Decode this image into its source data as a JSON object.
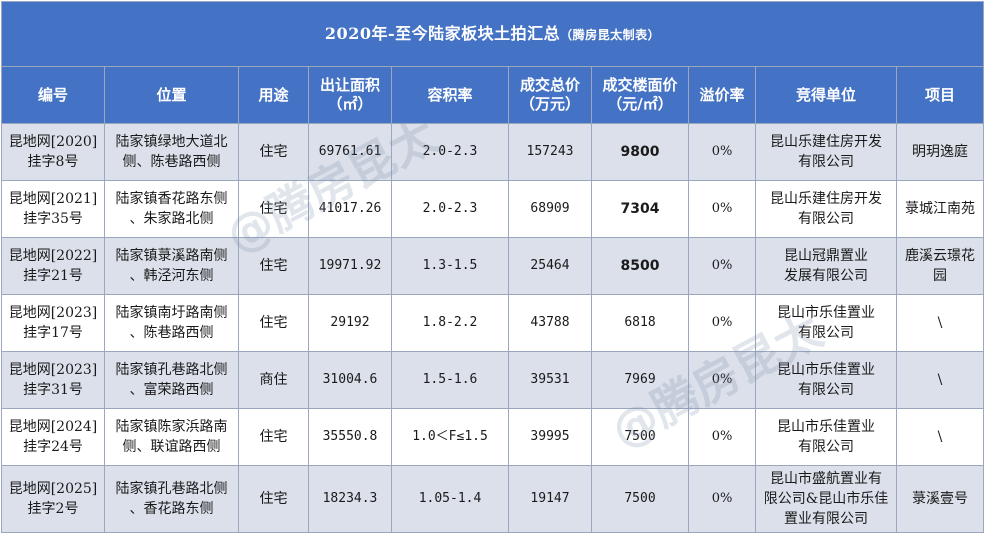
{
  "title": "2020年-至今陆家板块土拍汇总",
  "title_note": "（腾房昆太制表）",
  "headers": [
    "编号",
    "位置",
    "用途",
    "出让面积\n（㎡）",
    "容积率",
    "成交总价\n（万元）",
    "成交楼面价\n（元/㎡）",
    "溢价率",
    "竞得单位",
    "项目"
  ],
  "rows": [
    {
      "id": "昆地网[2020]\n挂字8号",
      "location": "陆家镇绿地大道北\n侧、陈巷路西侧",
      "use": "住宅",
      "area": "69761.61",
      "far": "2.0-2.3",
      "total_price": "157243",
      "floor_price": "9800",
      "premium": "0%",
      "winner": "昆山乐建住房开发\n有限公司",
      "project": "明玥逸庭",
      "highlight": true
    },
    {
      "id": "昆地网[2021]\n挂字35号",
      "location": "陆家镇香花路东侧\n、朱家路北侧",
      "use": "住宅",
      "area": "41017.26",
      "far": "2.0-2.3",
      "total_price": "68909",
      "floor_price": "7304",
      "premium": "0%",
      "winner": "昆山乐建住房开发\n有限公司",
      "project": "菉城江南苑",
      "highlight": true
    },
    {
      "id": "昆地网[2022]\n挂字21号",
      "location": "陆家镇菉溪路南侧\n、韩泾河东侧",
      "use": "住宅",
      "area": "19971.92",
      "far": "1.3-1.5",
      "total_price": "25464",
      "floor_price": "8500",
      "premium": "0%",
      "winner": "昆山冠鼎置业\n发展有限公司",
      "project": "鹿溪云璟花园",
      "highlight": true
    },
    {
      "id": "昆地网[2023]\n挂字17号",
      "location": "陆家镇南圩路南侧\n、陈巷路西侧",
      "use": "住宅",
      "area": "29192",
      "far": "1.8-2.2",
      "total_price": "43788",
      "floor_price": "6818",
      "premium": "0%",
      "winner": "昆山市乐佳置业\n有限公司",
      "project": "\\",
      "highlight": false
    },
    {
      "id": "昆地网[2023]\n挂字31号",
      "location": "陆家镇孔巷路北侧\n、富荣路西侧",
      "use": "商住",
      "area": "31004.6",
      "far": "1.5-1.6",
      "total_price": "39531",
      "floor_price": "7969",
      "premium": "0%",
      "winner": "昆山市乐佳置业\n有限公司",
      "project": "\\",
      "highlight": false
    },
    {
      "id": "昆地网[2024]\n挂字24号",
      "location": "陆家镇陈家浜路南\n侧、联谊路西侧",
      "use": "住宅",
      "area": "35550.8",
      "far": "1.0＜F≤1.5",
      "total_price": "39995",
      "floor_price": "7500",
      "premium": "0%",
      "winner": "昆山市乐佳置业\n有限公司",
      "project": "\\",
      "highlight": false
    },
    {
      "id": "昆地网[2025]\n挂字2号",
      "location": "陆家镇孔巷路北侧\n、香花路东侧",
      "use": "住宅",
      "area": "18234.3",
      "far": "1.05-1.4",
      "total_price": "19147",
      "floor_price": "7500",
      "premium": "0%",
      "winner": "昆山市盛航置业有\n限公司&昆山市乐佳\n置业有限公司",
      "project": "菉溪壹号",
      "highlight": false
    }
  ],
  "watermark": "@腾房昆太"
}
